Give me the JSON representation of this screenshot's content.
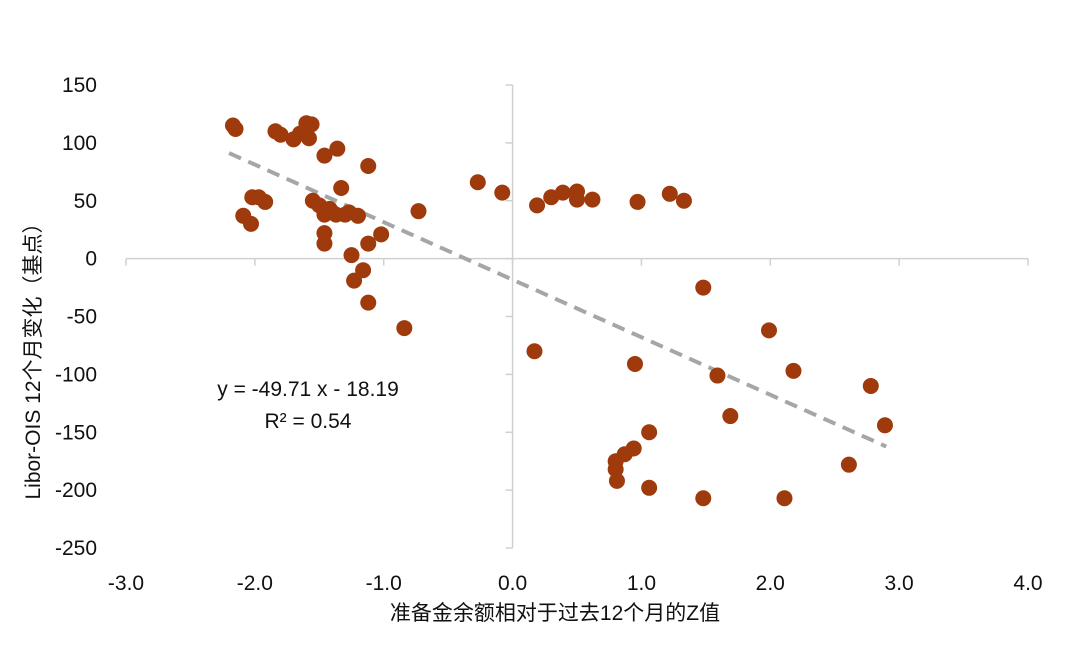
{
  "chart_data": {
    "type": "scatter",
    "xlabel": "准备金余额相对于过去12个月的Z值",
    "ylabel": "Libor-OIS 12个月变化（基点）",
    "xlim": [
      -3.0,
      4.0
    ],
    "ylim": [
      -250,
      150
    ],
    "x_ticks": [
      "-3.0",
      "-2.0",
      "-1.0",
      "0.0",
      "1.0",
      "2.0",
      "3.0",
      "4.0"
    ],
    "y_ticks": [
      "150",
      "100",
      "50",
      "0",
      "-50",
      "-100",
      "-150",
      "-200",
      "-250"
    ],
    "x_tick_values": [
      -3,
      -2,
      -1,
      0,
      1,
      2,
      3,
      4
    ],
    "y_tick_values": [
      150,
      100,
      50,
      0,
      -50,
      -100,
      -150,
      -200,
      -250
    ],
    "marker_color": "#9E3A0B",
    "trendline_color": "#A6A6A6",
    "grid": false,
    "trendline": {
      "slope": -49.71,
      "intercept": -18.19,
      "x_range": [
        -2.2,
        2.9
      ],
      "style": "dashed"
    },
    "annotations": {
      "equation": "y = -49.71 x - 18.19",
      "r_squared": "R² = 0.54"
    },
    "points": [
      {
        "x": -2.17,
        "y": 115
      },
      {
        "x": -2.15,
        "y": 112
      },
      {
        "x": -1.84,
        "y": 110
      },
      {
        "x": -1.8,
        "y": 107
      },
      {
        "x": -1.7,
        "y": 103
      },
      {
        "x": -1.65,
        "y": 108
      },
      {
        "x": -1.6,
        "y": 117
      },
      {
        "x": -1.58,
        "y": 104
      },
      {
        "x": -1.56,
        "y": 116
      },
      {
        "x": -1.46,
        "y": 89
      },
      {
        "x": -1.36,
        "y": 95
      },
      {
        "x": -1.12,
        "y": 80
      },
      {
        "x": -2.09,
        "y": 37
      },
      {
        "x": -2.03,
        "y": 30
      },
      {
        "x": -2.02,
        "y": 53
      },
      {
        "x": -1.97,
        "y": 53
      },
      {
        "x": -1.92,
        "y": 49
      },
      {
        "x": -1.55,
        "y": 50
      },
      {
        "x": -1.5,
        "y": 46
      },
      {
        "x": -1.46,
        "y": 38
      },
      {
        "x": -1.42,
        "y": 43
      },
      {
        "x": -1.4,
        "y": 40
      },
      {
        "x": -1.37,
        "y": 38
      },
      {
        "x": -1.33,
        "y": 61
      },
      {
        "x": -1.3,
        "y": 38
      },
      {
        "x": -1.27,
        "y": 40
      },
      {
        "x": -1.2,
        "y": 37
      },
      {
        "x": -1.46,
        "y": 22
      },
      {
        "x": -1.46,
        "y": 13
      },
      {
        "x": -1.12,
        "y": 13
      },
      {
        "x": -1.02,
        "y": 21
      },
      {
        "x": -0.73,
        "y": 41
      },
      {
        "x": -1.25,
        "y": 3
      },
      {
        "x": -1.16,
        "y": -10
      },
      {
        "x": -1.23,
        "y": -19
      },
      {
        "x": -1.12,
        "y": -38
      },
      {
        "x": -0.84,
        "y": -60
      },
      {
        "x": -0.27,
        "y": 66
      },
      {
        "x": -0.08,
        "y": 57
      },
      {
        "x": 0.19,
        "y": 46
      },
      {
        "x": 0.3,
        "y": 53
      },
      {
        "x": 0.39,
        "y": 57
      },
      {
        "x": 0.5,
        "y": 58
      },
      {
        "x": 0.5,
        "y": 51
      },
      {
        "x": 0.62,
        "y": 51
      },
      {
        "x": 0.97,
        "y": 49
      },
      {
        "x": 1.22,
        "y": 56
      },
      {
        "x": 1.33,
        "y": 50
      },
      {
        "x": 0.17,
        "y": -80
      },
      {
        "x": 1.48,
        "y": -25
      },
      {
        "x": 0.95,
        "y": -91
      },
      {
        "x": 1.99,
        "y": -62
      },
      {
        "x": 1.59,
        "y": -101
      },
      {
        "x": 2.18,
        "y": -97
      },
      {
        "x": 2.78,
        "y": -110
      },
      {
        "x": 1.69,
        "y": -136
      },
      {
        "x": 2.89,
        "y": -144
      },
      {
        "x": 1.06,
        "y": -150
      },
      {
        "x": 0.94,
        "y": -164
      },
      {
        "x": 0.87,
        "y": -169
      },
      {
        "x": 0.8,
        "y": -175
      },
      {
        "x": 0.8,
        "y": -182
      },
      {
        "x": 0.81,
        "y": -192
      },
      {
        "x": 1.06,
        "y": -198
      },
      {
        "x": 1.48,
        "y": -207
      },
      {
        "x": 2.11,
        "y": -207
      },
      {
        "x": 2.61,
        "y": -178
      }
    ]
  }
}
